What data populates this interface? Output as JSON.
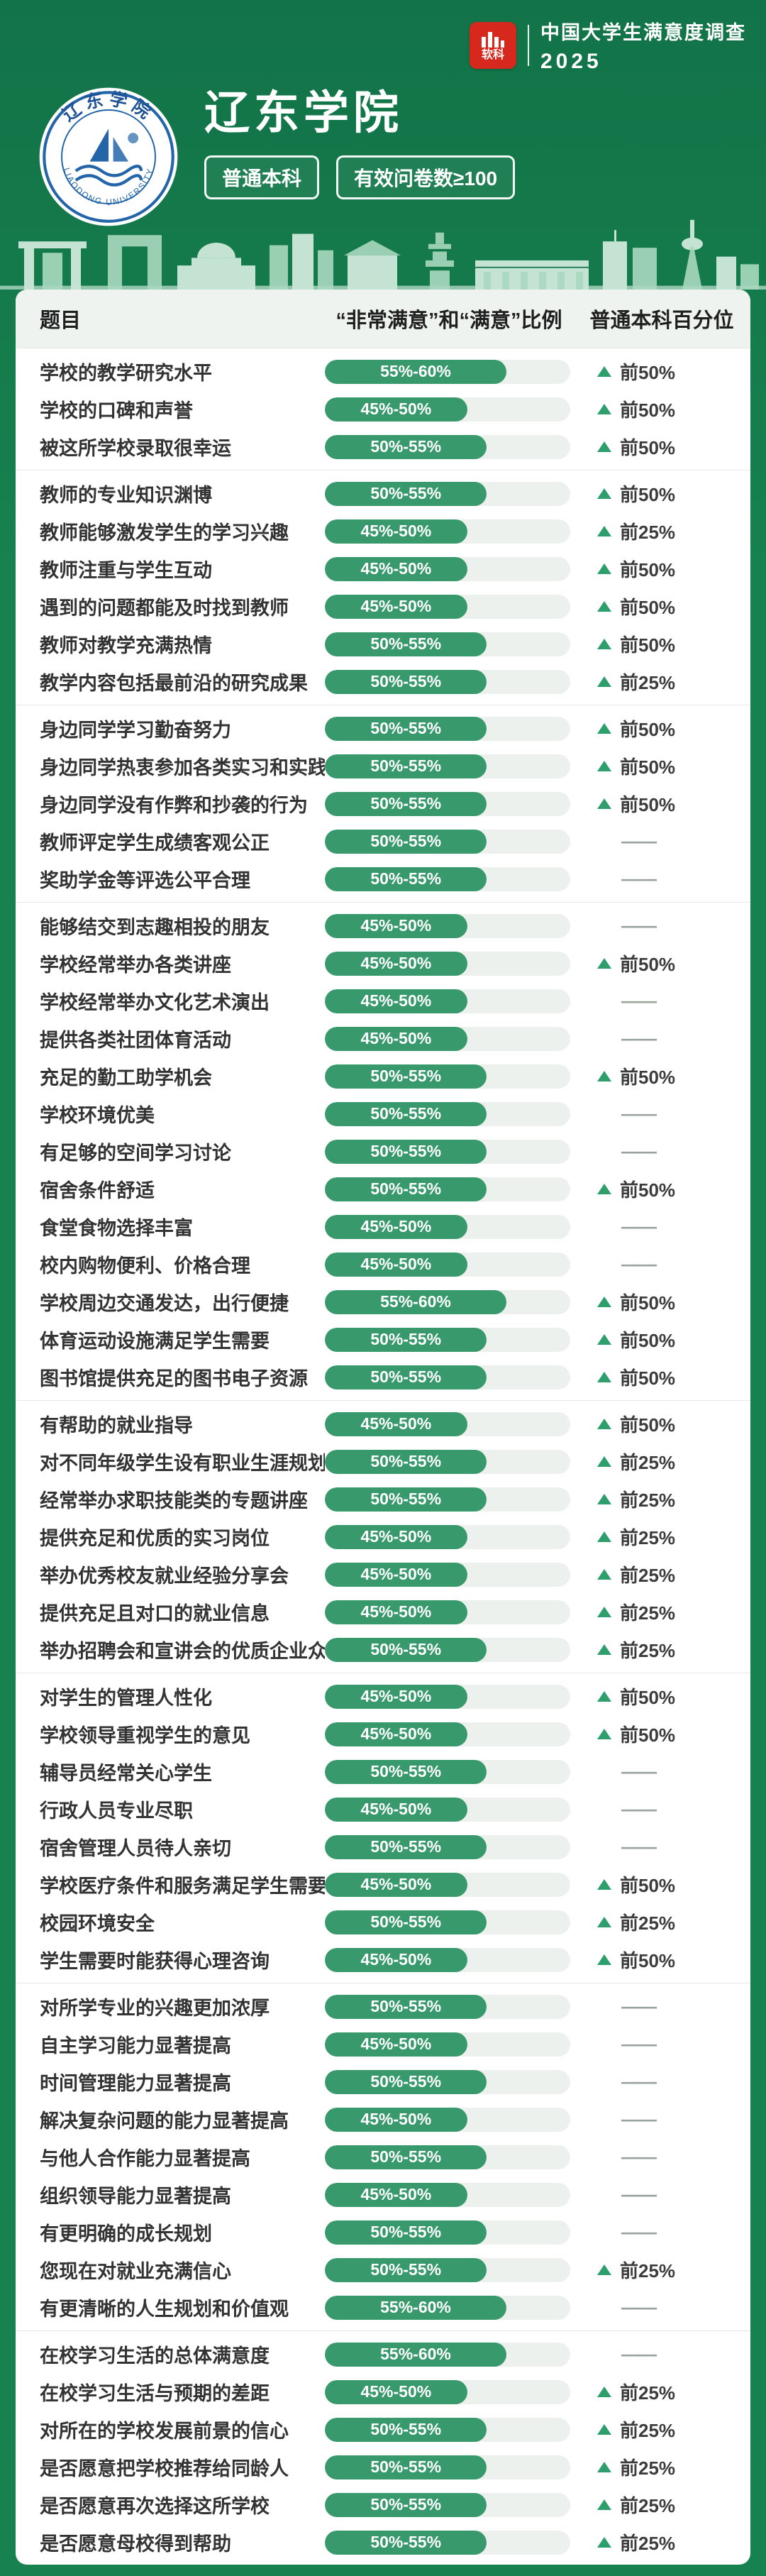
{
  "colors": {
    "page_bg": "#17814F",
    "accent_red": "#D7281E",
    "bar_fill": "#38996C",
    "bar_track": "#EDF1EE",
    "triangle": "#2D9E6C",
    "badge_blue": "#2365A8",
    "divider": "#E4E9E5",
    "thead_bg": "#EFF3F0"
  },
  "brand": {
    "logo_text": "软科",
    "survey_title": "中国大学生满意度调查",
    "year": "2025"
  },
  "university": {
    "name": "辽东学院",
    "ring_top": "辽东学院",
    "ring_bottom": "LIAODONG UNIVERSITY",
    "level_tag": "普通本科",
    "sample_tag": "有效问卷数≥100"
  },
  "table": {
    "headers": {
      "question": "题目",
      "ratio": "“非常满意”和“满意”比例",
      "percentile": "普通本科百分位"
    },
    "no_data": "——"
  },
  "chart_data": {
    "type": "bar",
    "title": "辽东学院 · 中国大学生满意度调查 2025",
    "value_label": "“非常满意”和“满意”比例",
    "percentile_label": "普通本科百分位",
    "value_categories": [
      "45%-50%",
      "50%-55%",
      "55%-60%"
    ],
    "sections": [
      {
        "rows": [
          {
            "q": "学校的教学研究水平",
            "ratio": "55%-60%",
            "pct": "前50%"
          },
          {
            "q": "学校的口碑和声誉",
            "ratio": "45%-50%",
            "pct": "前50%"
          },
          {
            "q": "被这所学校录取很幸运",
            "ratio": "50%-55%",
            "pct": "前50%"
          }
        ]
      },
      {
        "rows": [
          {
            "q": "教师的专业知识渊博",
            "ratio": "50%-55%",
            "pct": "前50%"
          },
          {
            "q": "教师能够激发学生的学习兴趣",
            "ratio": "45%-50%",
            "pct": "前25%"
          },
          {
            "q": "教师注重与学生互动",
            "ratio": "45%-50%",
            "pct": "前50%"
          },
          {
            "q": "遇到的问题都能及时找到教师",
            "ratio": "45%-50%",
            "pct": "前50%"
          },
          {
            "q": "教师对教学充满热情",
            "ratio": "50%-55%",
            "pct": "前50%"
          },
          {
            "q": "教学内容包括最前沿的研究成果",
            "ratio": "50%-55%",
            "pct": "前25%"
          }
        ]
      },
      {
        "rows": [
          {
            "q": "身边同学学习勤奋努力",
            "ratio": "50%-55%",
            "pct": "前50%"
          },
          {
            "q": "身边同学热衷参加各类实习和实践",
            "ratio": "50%-55%",
            "pct": "前50%"
          },
          {
            "q": "身边同学没有作弊和抄袭的行为",
            "ratio": "50%-55%",
            "pct": "前50%"
          },
          {
            "q": "教师评定学生成绩客观公正",
            "ratio": "50%-55%",
            "pct": ""
          },
          {
            "q": "奖助学金等评选公平合理",
            "ratio": "50%-55%",
            "pct": ""
          }
        ]
      },
      {
        "rows": [
          {
            "q": "能够结交到志趣相投的朋友",
            "ratio": "45%-50%",
            "pct": ""
          },
          {
            "q": "学校经常举办各类讲座",
            "ratio": "45%-50%",
            "pct": "前50%"
          },
          {
            "q": "学校经常举办文化艺术演出",
            "ratio": "45%-50%",
            "pct": ""
          },
          {
            "q": "提供各类社团体育活动",
            "ratio": "45%-50%",
            "pct": ""
          },
          {
            "q": "充足的勤工助学机会",
            "ratio": "50%-55%",
            "pct": "前50%"
          },
          {
            "q": "学校环境优美",
            "ratio": "50%-55%",
            "pct": ""
          },
          {
            "q": "有足够的空间学习讨论",
            "ratio": "50%-55%",
            "pct": ""
          },
          {
            "q": "宿舍条件舒适",
            "ratio": "50%-55%",
            "pct": "前50%"
          },
          {
            "q": "食堂食物选择丰富",
            "ratio": "45%-50%",
            "pct": ""
          },
          {
            "q": "校内购物便利、价格合理",
            "ratio": "45%-50%",
            "pct": ""
          },
          {
            "q": "学校周边交通发达，出行便捷",
            "ratio": "55%-60%",
            "pct": "前50%"
          },
          {
            "q": "体育运动设施满足学生需要",
            "ratio": "50%-55%",
            "pct": "前50%"
          },
          {
            "q": "图书馆提供充足的图书电子资源",
            "ratio": "50%-55%",
            "pct": "前50%"
          }
        ]
      },
      {
        "rows": [
          {
            "q": "有帮助的就业指导",
            "ratio": "45%-50%",
            "pct": "前50%"
          },
          {
            "q": "对不同年级学生设有职业生涯规划课",
            "ratio": "50%-55%",
            "pct": "前25%"
          },
          {
            "q": "经常举办求职技能类的专题讲座",
            "ratio": "50%-55%",
            "pct": "前25%"
          },
          {
            "q": "提供充足和优质的实习岗位",
            "ratio": "45%-50%",
            "pct": "前25%"
          },
          {
            "q": "举办优秀校友就业经验分享会",
            "ratio": "45%-50%",
            "pct": "前25%"
          },
          {
            "q": "提供充足且对口的就业信息",
            "ratio": "45%-50%",
            "pct": "前25%"
          },
          {
            "q": "举办招聘会和宣讲会的优质企业众多",
            "ratio": "50%-55%",
            "pct": "前25%"
          }
        ]
      },
      {
        "rows": [
          {
            "q": "对学生的管理人性化",
            "ratio": "45%-50%",
            "pct": "前50%"
          },
          {
            "q": "学校领导重视学生的意见",
            "ratio": "45%-50%",
            "pct": "前50%"
          },
          {
            "q": "辅导员经常关心学生",
            "ratio": "50%-55%",
            "pct": ""
          },
          {
            "q": "行政人员专业尽职",
            "ratio": "45%-50%",
            "pct": ""
          },
          {
            "q": "宿舍管理人员待人亲切",
            "ratio": "50%-55%",
            "pct": ""
          },
          {
            "q": "学校医疗条件和服务满足学生需要",
            "ratio": "45%-50%",
            "pct": "前50%"
          },
          {
            "q": "校园环境安全",
            "ratio": "50%-55%",
            "pct": "前25%"
          },
          {
            "q": "学生需要时能获得心理咨询",
            "ratio": "45%-50%",
            "pct": "前50%"
          }
        ]
      },
      {
        "rows": [
          {
            "q": "对所学专业的兴趣更加浓厚",
            "ratio": "50%-55%",
            "pct": ""
          },
          {
            "q": "自主学习能力显著提高",
            "ratio": "45%-50%",
            "pct": ""
          },
          {
            "q": "时间管理能力显著提高",
            "ratio": "50%-55%",
            "pct": ""
          },
          {
            "q": "解决复杂问题的能力显著提高",
            "ratio": "45%-50%",
            "pct": ""
          },
          {
            "q": "与他人合作能力显著提高",
            "ratio": "50%-55%",
            "pct": ""
          },
          {
            "q": "组织领导能力显著提高",
            "ratio": "45%-50%",
            "pct": ""
          },
          {
            "q": "有更明确的成长规划",
            "ratio": "50%-55%",
            "pct": ""
          },
          {
            "q": "您现在对就业充满信心",
            "ratio": "50%-55%",
            "pct": "前25%"
          },
          {
            "q": "有更清晰的人生规划和价值观",
            "ratio": "55%-60%",
            "pct": ""
          }
        ]
      },
      {
        "rows": [
          {
            "q": "在校学习生活的总体满意度",
            "ratio": "55%-60%",
            "pct": ""
          },
          {
            "q": "在校学习生活与预期的差距",
            "ratio": "45%-50%",
            "pct": "前25%"
          },
          {
            "q": "对所在的学校发展前景的信心",
            "ratio": "50%-55%",
            "pct": "前25%"
          },
          {
            "q": "是否愿意把学校推荐给同龄人",
            "ratio": "50%-55%",
            "pct": "前25%"
          },
          {
            "q": "是否愿意再次选择这所学校",
            "ratio": "50%-55%",
            "pct": "前25%"
          },
          {
            "q": "是否愿意母校得到帮助",
            "ratio": "50%-55%",
            "pct": "前25%"
          }
        ]
      }
    ]
  }
}
